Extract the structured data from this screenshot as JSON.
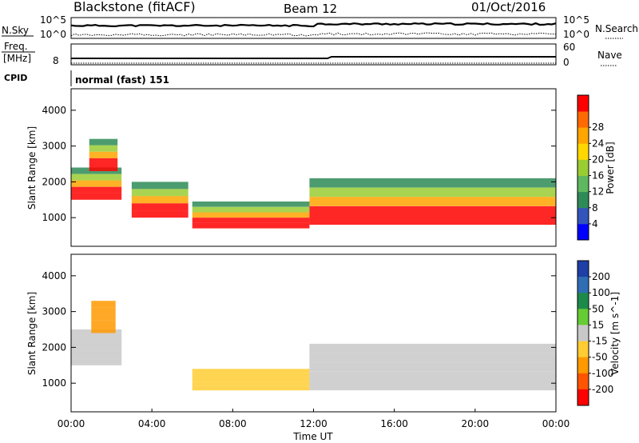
{
  "header": {
    "station": "Blackstone (fitACF)",
    "beam": "Beam 12",
    "date": "01/Oct/2016"
  },
  "noise_panel": {
    "left_label": "N.Sky",
    "right_label": "N.Search",
    "left_top_tick": "10^5",
    "left_bottom_tick": "10^0",
    "right_top_tick": "10^5",
    "right_bottom_tick": "10^0"
  },
  "freq_panel": {
    "label_line1": "Freq.",
    "label_line2": "[MHz]",
    "right_label": "Nave",
    "left_tick": "8",
    "right_top_tick": "60",
    "right_bottom_tick": "0"
  },
  "cpid": {
    "label": "CPID",
    "value": "normal (fast) 151"
  },
  "x_axis": {
    "title": "Time UT",
    "ticks": [
      "00:00",
      "04:00",
      "08:00",
      "12:00",
      "16:00",
      "20:00",
      "00:00"
    ]
  },
  "chart_data": [
    {
      "type": "heatmap",
      "ylabel": "Slant Range [km]",
      "ylim": [
        200,
        4600
      ],
      "y_ticks": [
        "1000",
        "2000",
        "3000",
        "4000"
      ],
      "colorbar_label": "Power [dB]",
      "colorbar_ticks": [
        "4",
        "8",
        "12",
        "16",
        "20",
        "24",
        "28"
      ],
      "colorbar_colors": [
        "#0000ff",
        "#3355bb",
        "#2e8b57",
        "#5fb85f",
        "#9acd32",
        "#ffd700",
        "#ffa500",
        "#ff6a00",
        "#ff0000"
      ],
      "echo_regions": [
        {
          "t_start": 0.0,
          "t_end": 2.5,
          "range_low": 1500,
          "range_high": 2400
        },
        {
          "t_start": 0.9,
          "t_end": 2.3,
          "range_low": 2300,
          "range_high": 3200
        },
        {
          "t_start": 3.0,
          "t_end": 5.8,
          "range_low": 1000,
          "range_high": 2000
        },
        {
          "t_start": 6.0,
          "t_end": 11.8,
          "range_low": 700,
          "range_high": 1450
        },
        {
          "t_start": 11.8,
          "t_end": 24.0,
          "range_low": 800,
          "range_high": 2100
        }
      ]
    },
    {
      "type": "heatmap",
      "ylabel": "Slant Range [km]",
      "ylim": [
        200,
        4600
      ],
      "y_ticks": [
        "1000",
        "2000",
        "3000",
        "4000"
      ],
      "colorbar_label": "Velocity [m s^-1]",
      "colorbar_ticks": [
        "200",
        "100",
        "50",
        "15",
        "-15",
        "-50",
        "-100",
        "-200"
      ],
      "colorbar_colors": [
        "#1e3fa6",
        "#2f6db5",
        "#1e8a4a",
        "#66cc33",
        "#c8c8c8",
        "#ffcc33",
        "#ff9900",
        "#ff5500",
        "#ff0000"
      ],
      "echo_regions": [
        {
          "t_start": 0.0,
          "t_end": 2.5,
          "range_low": 1500,
          "range_high": 2500,
          "dominant_velocity": "-15 to 15"
        },
        {
          "t_start": 1.0,
          "t_end": 2.2,
          "range_low": 2400,
          "range_high": 3300,
          "dominant_velocity": "-100 to -50"
        },
        {
          "t_start": 6.0,
          "t_end": 11.8,
          "range_low": 800,
          "range_high": 1400,
          "dominant_velocity": "-50 to -15"
        },
        {
          "t_start": 11.8,
          "t_end": 24.0,
          "range_low": 800,
          "range_high": 2100,
          "dominant_velocity": "-15 to 15"
        }
      ]
    }
  ]
}
